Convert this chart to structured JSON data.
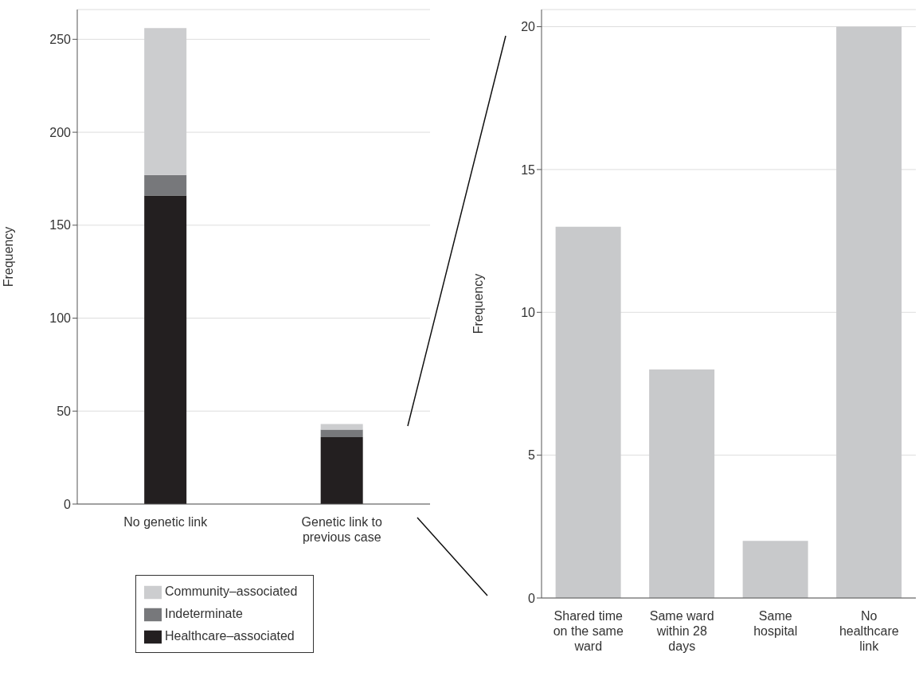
{
  "chart_data": [
    {
      "type": "bar",
      "stacked": true,
      "categories": [
        "No genetic link",
        "Genetic link to previous case"
      ],
      "ylabel": "Frequency",
      "ylim": [
        0,
        266
      ],
      "yticks": [
        0,
        50,
        100,
        150,
        200,
        250
      ],
      "grid": "y",
      "legend": "bottom",
      "series": [
        {
          "name": "Healthcare–associated",
          "color": "#231f20",
          "values": [
            166,
            36
          ]
        },
        {
          "name": "Indeterminate",
          "color": "#77787b",
          "values": [
            11,
            4
          ]
        },
        {
          "name": "Community–associated",
          "color": "#cccdcf",
          "values": [
            79,
            3
          ]
        }
      ]
    },
    {
      "type": "bar",
      "categories": [
        "Shared time on the same ward",
        "Same ward within 28 days",
        "Same hospital",
        "No healthcare link"
      ],
      "values": [
        13,
        8,
        2,
        20
      ],
      "color": "#c8c9cb",
      "ylabel": "Frequency",
      "ylim": [
        0,
        20.6
      ],
      "yticks": [
        0,
        5,
        10,
        15,
        20
      ],
      "grid": "y"
    }
  ]
}
